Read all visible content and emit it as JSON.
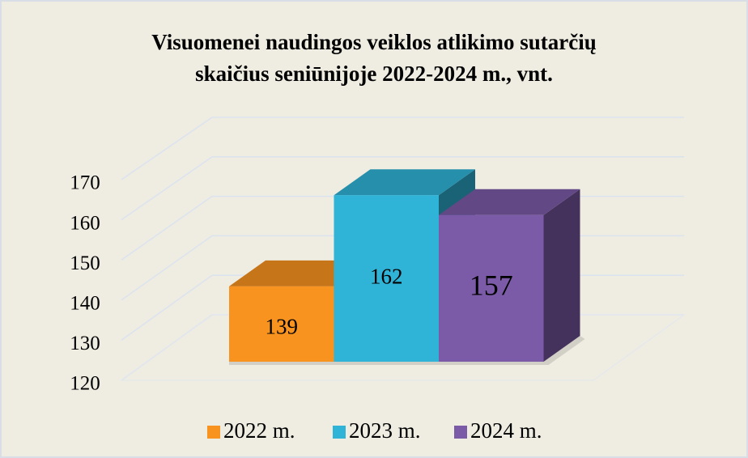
{
  "chart_data": {
    "type": "bar3d",
    "title": "Visuomenei naudingos veiklos atlikimo sutarčių",
    "subtitle": "skaičius seniūnijoje 2022-2024 m., vnt.",
    "categories": [
      null
    ],
    "series": [
      {
        "name": "2022 m.",
        "color": "#f7931e",
        "values": [
          139
        ]
      },
      {
        "name": "2023 m.",
        "color": "#2fb3d6",
        "values": [
          162
        ]
      },
      {
        "name": "2024 m.",
        "color": "#7b5ba8",
        "values": [
          157
        ]
      }
    ],
    "ylim": [
      120,
      170
    ],
    "yticks": [
      120,
      130,
      140,
      150,
      160,
      170
    ],
    "grid": true,
    "legend": "bottom"
  }
}
